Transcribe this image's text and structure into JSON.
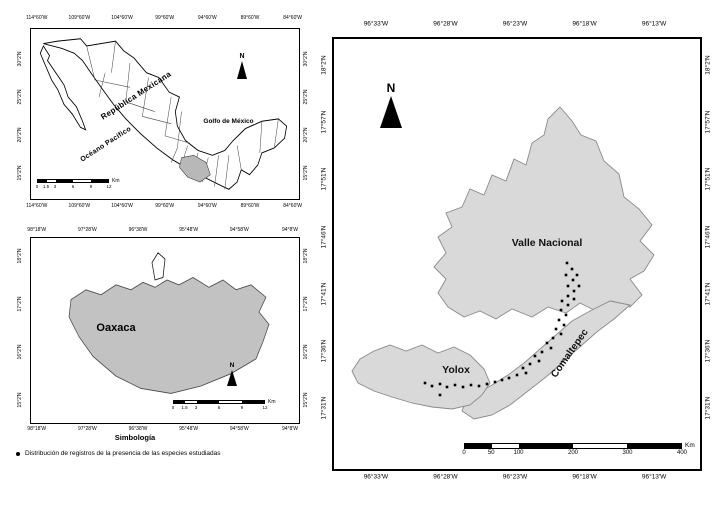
{
  "colors": {
    "background": "#ffffff",
    "oaxaca_fill": "#c2c2c2",
    "region_fill": "#d9d9d9",
    "region_stroke": "#8a8a8a",
    "point_color": "#000000"
  },
  "north_label": "N",
  "km_label": "Km",
  "mexico_map": {
    "labels": {
      "country": "República Mexicana",
      "gulf": "Golfo de México",
      "ocean": "Océano Pacífico"
    },
    "lon_ticks": [
      "114°60'W",
      "109°60'W",
      "104°60'W",
      "99°60'W",
      "94°60'W",
      "89°60'W",
      "84°60'W"
    ],
    "lat_ticks": [
      "30°2'N",
      "25°2'N",
      "20°2'N",
      "15°2'N"
    ],
    "scalebar": [
      "0",
      "1.5",
      "3",
      "6",
      "9",
      "12"
    ]
  },
  "oaxaca_map": {
    "label": "Oaxaca",
    "lon_ticks": [
      "98°18'W",
      "97°28'W",
      "96°38'W",
      "95°48'W",
      "94°58'W",
      "94°8'W"
    ],
    "lat_ticks": [
      "18°2'N",
      "17°2'N",
      "16°2'N",
      "15°2'N"
    ],
    "scalebar": [
      "0",
      "1.5",
      "3",
      "6",
      "9",
      "12"
    ]
  },
  "legend": {
    "title": "Simbología",
    "items": [
      {
        "label": "Distribución de registros de la presencia de las especies estudiadas"
      }
    ]
  },
  "detail_map": {
    "regions": [
      "Valle Nacional",
      "Yolox",
      "Comaltepec"
    ],
    "lon_ticks": [
      "96°33'W",
      "96°28'W",
      "96°23'W",
      "96°18'W",
      "96°13'W"
    ],
    "lat_ticks": [
      "18°2'N",
      "17°57'N",
      "17°51'N",
      "17°46'N",
      "17°41'N",
      "17°36'N",
      "17°31'N"
    ],
    "scalebar": [
      "0",
      "50",
      "100",
      "200",
      "300",
      "400"
    ],
    "record_points": [
      [
        233,
        224
      ],
      [
        238,
        230
      ],
      [
        232,
        236
      ],
      [
        239,
        241
      ],
      [
        234,
        247
      ],
      [
        240,
        252
      ],
      [
        234,
        257
      ],
      [
        228,
        262
      ],
      [
        234,
        266
      ],
      [
        227,
        271
      ],
      [
        232,
        276
      ],
      [
        225,
        281
      ],
      [
        230,
        286
      ],
      [
        222,
        290
      ],
      [
        227,
        295
      ],
      [
        219,
        299
      ],
      [
        213,
        304
      ],
      [
        217,
        309
      ],
      [
        208,
        313
      ],
      [
        201,
        317
      ],
      [
        205,
        322
      ],
      [
        196,
        325
      ],
      [
        189,
        329
      ],
      [
        192,
        334
      ],
      [
        183,
        336
      ],
      [
        175,
        339
      ],
      [
        168,
        341
      ],
      [
        161,
        343
      ],
      [
        153,
        345
      ],
      [
        145,
        347
      ],
      [
        137,
        346
      ],
      [
        129,
        348
      ],
      [
        121,
        346
      ],
      [
        113,
        348
      ],
      [
        106,
        345
      ],
      [
        98,
        347
      ],
      [
        91,
        344
      ],
      [
        106,
        356
      ],
      [
        243,
        236
      ],
      [
        245,
        247
      ],
      [
        240,
        260
      ]
    ]
  }
}
